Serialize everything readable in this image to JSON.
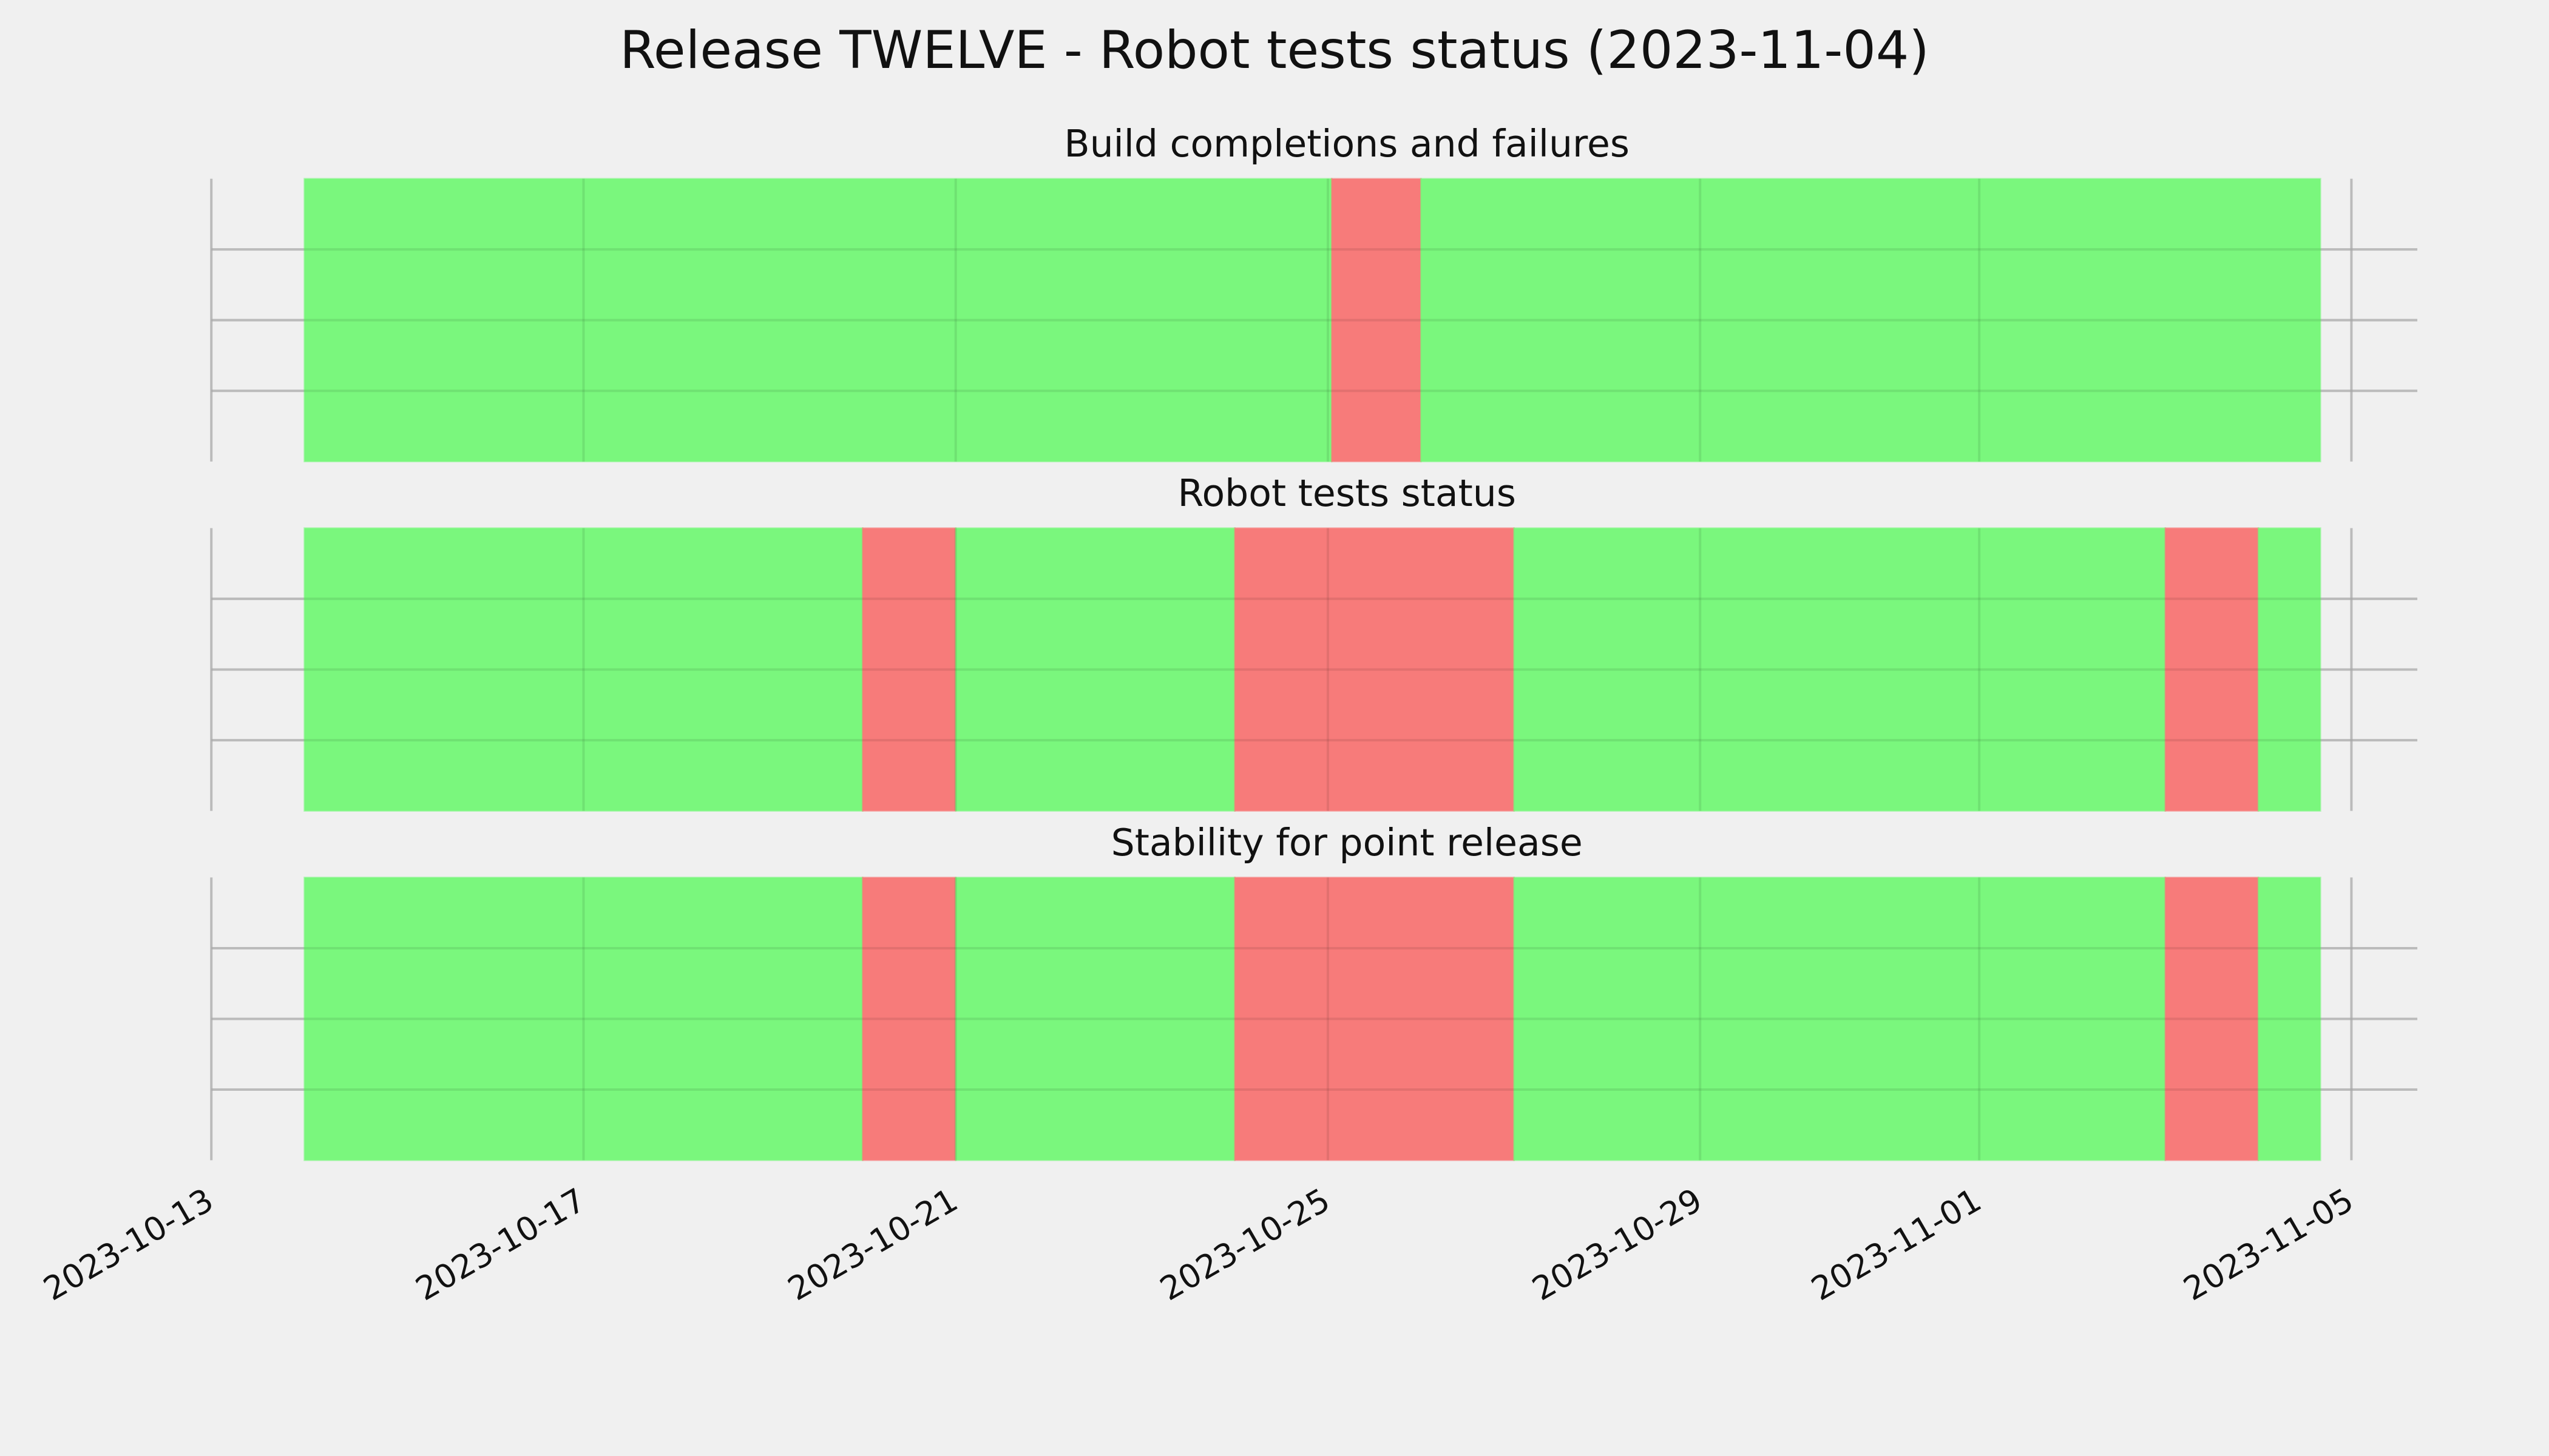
{
  "title": "Release TWELVE - Robot tests status (2023-11-04)",
  "chart_data": [
    {
      "type": "timeline",
      "title": "Build completions and failures",
      "segments": [
        {
          "start": "2023-10-14T00:00",
          "end": "2023-10-25T01:00",
          "color": "#76f779"
        },
        {
          "start": "2023-10-25T01:00",
          "end": "2023-10-26T00:00",
          "color": "#f77776"
        },
        {
          "start": "2023-10-26T00:00",
          "end": "2023-11-04T16:00",
          "color": "#76f779"
        }
      ],
      "xlim": [
        "2023-10-13T00:00",
        "2023-11-05T17:00"
      ],
      "xticks": [
        "2023-10-13",
        "2023-10-17",
        "2023-10-21",
        "2023-10-25",
        "2023-10-29",
        "2023-11-01",
        "2023-11-05"
      ],
      "ylim": [
        0,
        1
      ],
      "yticks": [
        0.25,
        0.5,
        0.75
      ],
      "grid": true
    },
    {
      "type": "timeline",
      "title": "Robot tests status",
      "segments": [
        {
          "start": "2023-10-14T00:00",
          "end": "2023-10-20T00:00",
          "color": "#76f779"
        },
        {
          "start": "2023-10-20T00:00",
          "end": "2023-10-21T00:00",
          "color": "#f77776"
        },
        {
          "start": "2023-10-21T00:00",
          "end": "2023-10-24T00:00",
          "color": "#76f779"
        },
        {
          "start": "2023-10-24T00:00",
          "end": "2023-10-27T00:00",
          "color": "#f77776"
        },
        {
          "start": "2023-10-27T00:00",
          "end": "2023-11-03T00:00",
          "color": "#76f779"
        },
        {
          "start": "2023-11-03T00:00",
          "end": "2023-11-04T00:00",
          "color": "#f77776"
        },
        {
          "start": "2023-11-04T00:00",
          "end": "2023-11-04T16:00",
          "color": "#76f779"
        }
      ],
      "xlim": [
        "2023-10-13T00:00",
        "2023-11-05T17:00"
      ],
      "xticks": [
        "2023-10-13",
        "2023-10-17",
        "2023-10-21",
        "2023-10-25",
        "2023-10-29",
        "2023-11-01",
        "2023-11-05"
      ],
      "ylim": [
        0,
        1
      ],
      "yticks": [
        0.25,
        0.5,
        0.75
      ],
      "grid": true
    },
    {
      "type": "timeline",
      "title": "Stability for point release",
      "segments": [
        {
          "start": "2023-10-14T00:00",
          "end": "2023-10-20T00:00",
          "color": "#76f779"
        },
        {
          "start": "2023-10-20T00:00",
          "end": "2023-10-21T00:00",
          "color": "#f77776"
        },
        {
          "start": "2023-10-21T00:00",
          "end": "2023-10-24T00:00",
          "color": "#76f779"
        },
        {
          "start": "2023-10-24T00:00",
          "end": "2023-10-27T00:00",
          "color": "#f77776"
        },
        {
          "start": "2023-10-27T00:00",
          "end": "2023-11-03T00:00",
          "color": "#76f779"
        },
        {
          "start": "2023-11-03T00:00",
          "end": "2023-11-04T00:00",
          "color": "#f77776"
        },
        {
          "start": "2023-11-04T00:00",
          "end": "2023-11-04T16:00",
          "color": "#76f779"
        }
      ],
      "xlim": [
        "2023-10-13T00:00",
        "2023-11-05T17:00"
      ],
      "xticks": [
        "2023-10-13",
        "2023-10-17",
        "2023-10-21",
        "2023-10-25",
        "2023-10-29",
        "2023-11-01",
        "2023-11-05"
      ],
      "ylim": [
        0,
        1
      ],
      "yticks": [
        0.25,
        0.5,
        0.75
      ],
      "grid": true
    }
  ]
}
